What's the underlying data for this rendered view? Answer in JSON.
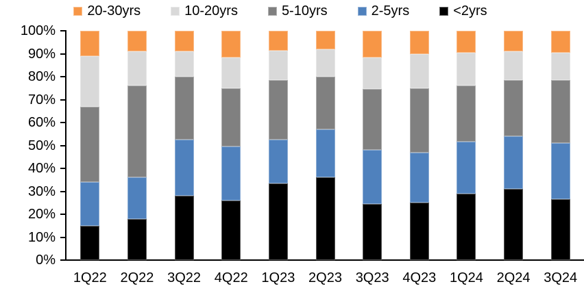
{
  "chart_data": {
    "type": "bar",
    "subtype": "stacked-100-percent",
    "title": "",
    "xlabel": "",
    "ylabel": "",
    "ylim": [
      0,
      100
    ],
    "grid": false,
    "legend_position": "top",
    "y_ticks": [
      "100%",
      "90%",
      "80%",
      "70%",
      "60%",
      "50%",
      "40%",
      "30%",
      "20%",
      "10%",
      "0%"
    ],
    "categories": [
      "1Q22",
      "2Q22",
      "3Q22",
      "4Q22",
      "1Q23",
      "2Q23",
      "3Q23",
      "4Q23",
      "1Q24",
      "2Q24",
      "3Q24"
    ],
    "series": [
      {
        "name": "<2yrs",
        "color": "#000000",
        "values": [
          15,
          18,
          28,
          26,
          33.5,
          36,
          24.5,
          25,
          29,
          31,
          26.5
        ]
      },
      {
        "name": "2-5yrs",
        "color": "#4F81BD",
        "values": [
          19,
          18,
          24.5,
          23.5,
          19,
          21,
          23.5,
          22,
          22.5,
          23,
          24.5
        ]
      },
      {
        "name": "5-10yrs",
        "color": "#808080",
        "values": [
          33,
          40,
          27.5,
          25.5,
          26,
          23,
          26.5,
          28,
          24.5,
          24.5,
          27.5
        ]
      },
      {
        "name": "10-20yrs",
        "color": "#D9D9D9",
        "values": [
          22,
          15,
          11,
          13.5,
          13,
          12,
          14,
          15,
          14.5,
          12.5,
          12
        ]
      },
      {
        "name": "20-30yrs",
        "color": "#F79646",
        "values": [
          11,
          9,
          9,
          11.5,
          8.5,
          8,
          11.5,
          10,
          9.5,
          9,
          9.5
        ]
      }
    ],
    "legend_order": [
      "20-30yrs",
      "10-20yrs",
      "5-10yrs",
      "2-5yrs",
      "<2yrs"
    ],
    "colors": {
      "orange": "#F79646",
      "light_gray": "#D9D9D9",
      "dark_gray": "#808080",
      "blue": "#4F81BD",
      "black": "#000000",
      "axis": "#000000",
      "background": "#FFFFFF"
    }
  }
}
